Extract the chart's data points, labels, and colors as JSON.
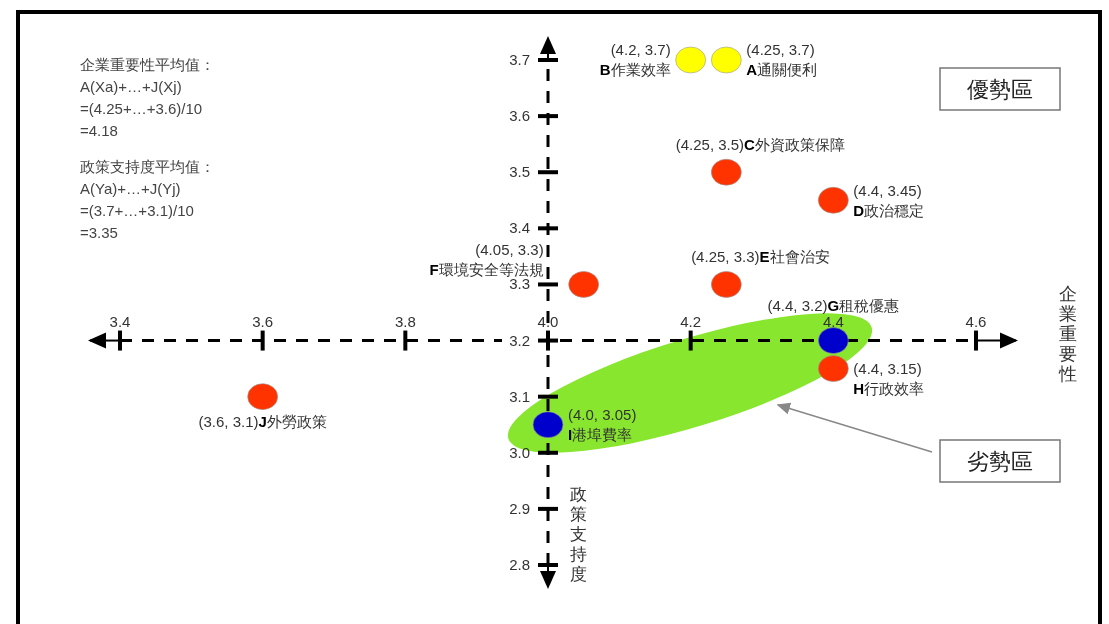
{
  "chart_data": {
    "type": "scatter",
    "xlabel": "企業重要性",
    "ylabel": "政策支持度",
    "xlim": [
      3.4,
      4.6
    ],
    "ylim": [
      2.8,
      3.7
    ],
    "xticks": [
      3.4,
      3.6,
      3.8,
      {
        "value": 4.0,
        "label": "4.0"
      },
      4.2,
      4.4,
      4.6
    ],
    "yticks": [
      2.8,
      2.9,
      {
        "value": 3.0,
        "label": "3.0"
      },
      3.1,
      3.2,
      3.3,
      3.4,
      3.5,
      3.6,
      3.7
    ],
    "marker": "circle",
    "line_style": "dashed",
    "series": [
      {
        "name": "**A**通關便利",
        "color": "#ffff00",
        "x": [
          4.25
        ],
        "values": [
          3.7
        ],
        "value_labels": [
          "(4.25, 3.7)"
        ]
      },
      {
        "name": "**B**作業效率",
        "color": "#ffff00",
        "x": [
          4.2
        ],
        "values": [
          3.7
        ],
        "value_labels": [
          "(4.2, 3.7)"
        ]
      },
      {
        "name": "**C**外資政策保障",
        "color": "#ff3300",
        "x": [
          4.25
        ],
        "values": [
          3.5
        ],
        "value_labels": [
          "(4.25, 3.5)"
        ]
      },
      {
        "name": "**D**政治穩定",
        "color": "#ff3300",
        "x": [
          4.4
        ],
        "values": [
          3.45
        ],
        "value_labels": [
          "(4.4, 3.45)"
        ]
      },
      {
        "name": "**E**社會治安",
        "color": "#ff3300",
        "x": [
          4.25
        ],
        "values": [
          3.3
        ],
        "value_labels": [
          "(4.25, 3.3)"
        ]
      },
      {
        "name": "**F**環境安全等法規",
        "color": "#ff3300",
        "x": [
          4.05
        ],
        "values": [
          3.3
        ],
        "value_labels": [
          "(4.05, 3.3)"
        ]
      },
      {
        "name": "**G**租稅優惠",
        "color": "#0000cc",
        "x": [
          4.4
        ],
        "values": [
          3.2
        ],
        "value_labels": [
          "(4.4, 3.2)"
        ]
      },
      {
        "name": "**H**行政效率",
        "color": "#ff3300",
        "x": [
          4.4
        ],
        "values": [
          3.15
        ],
        "value_labels": [
          "(4.4, 3.15)"
        ]
      },
      {
        "name": "**I**港埠費率",
        "color": "#0000cc",
        "x": [
          4.0
        ],
        "values": [
          3.05
        ],
        "value_labels": [
          "(4.0, 3.05)"
        ]
      },
      {
        "name": "**J**外勞政策",
        "color": "#ff3300",
        "x": [
          3.6
        ],
        "values": [
          3.1
        ],
        "value_labels": [
          "(3.6, 3.1)"
        ]
      }
    ],
    "annotations": [
      "企業重要性平均值：\nA(Xa)+…+J(Xj)\n=(4.25+…+3.6)/10\n=4.18",
      "政策支持度平均值：\nA(Ya)+…+J(Yj)\n=(3.7+…+3.1)/10\n=3.35",
      "優勢區",
      "劣勢區"
    ]
  }
}
